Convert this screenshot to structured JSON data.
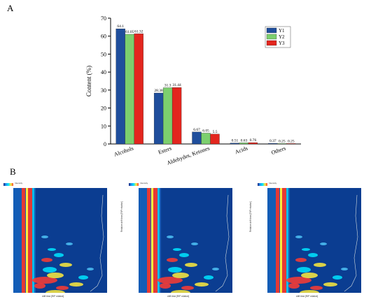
{
  "panels": {
    "a_label": "A",
    "b_label": "B"
  },
  "chart_data": {
    "type": "bar",
    "categories": [
      "Alcohols",
      "Esters",
      "Aldehydes, Ketones",
      "Acids",
      "Others"
    ],
    "series": [
      {
        "name": "Y1",
        "color": "#1f4e9c",
        "values": [
          64.1,
          28.38,
          6.67,
          0.51,
          0.37
        ],
        "labels": [
          "64.1",
          "28.38",
          "6.67",
          "0.51",
          "0.37"
        ]
      },
      {
        "name": "Y2",
        "color": "#7ccf6e",
        "values": [
          61.05,
          31.3,
          6.05,
          0.63,
          0.25
        ],
        "labels": [
          "61.05",
          "31.3",
          "6.05",
          "0.63",
          "0.25"
        ]
      },
      {
        "name": "Y3",
        "color": "#e3261e",
        "values": [
          61.32,
          31.44,
          5.5,
          0.76,
          0.25
        ],
        "labels": [
          "61.32",
          "31.44",
          "5.5",
          "0.76",
          "0.25"
        ]
      }
    ],
    "ylabel": "Content (%)",
    "ylim": [
      0,
      70
    ],
    "yticks": [
      0,
      10,
      20,
      30,
      40,
      50,
      60,
      70
    ],
    "grid": false,
    "legend": "top-right"
  },
  "heatmaps": {
    "y_label": "Relative drift time [RIP relative]",
    "x_label": "drift time [RIP relative]",
    "legend_text": "Intensity",
    "count": 3
  }
}
